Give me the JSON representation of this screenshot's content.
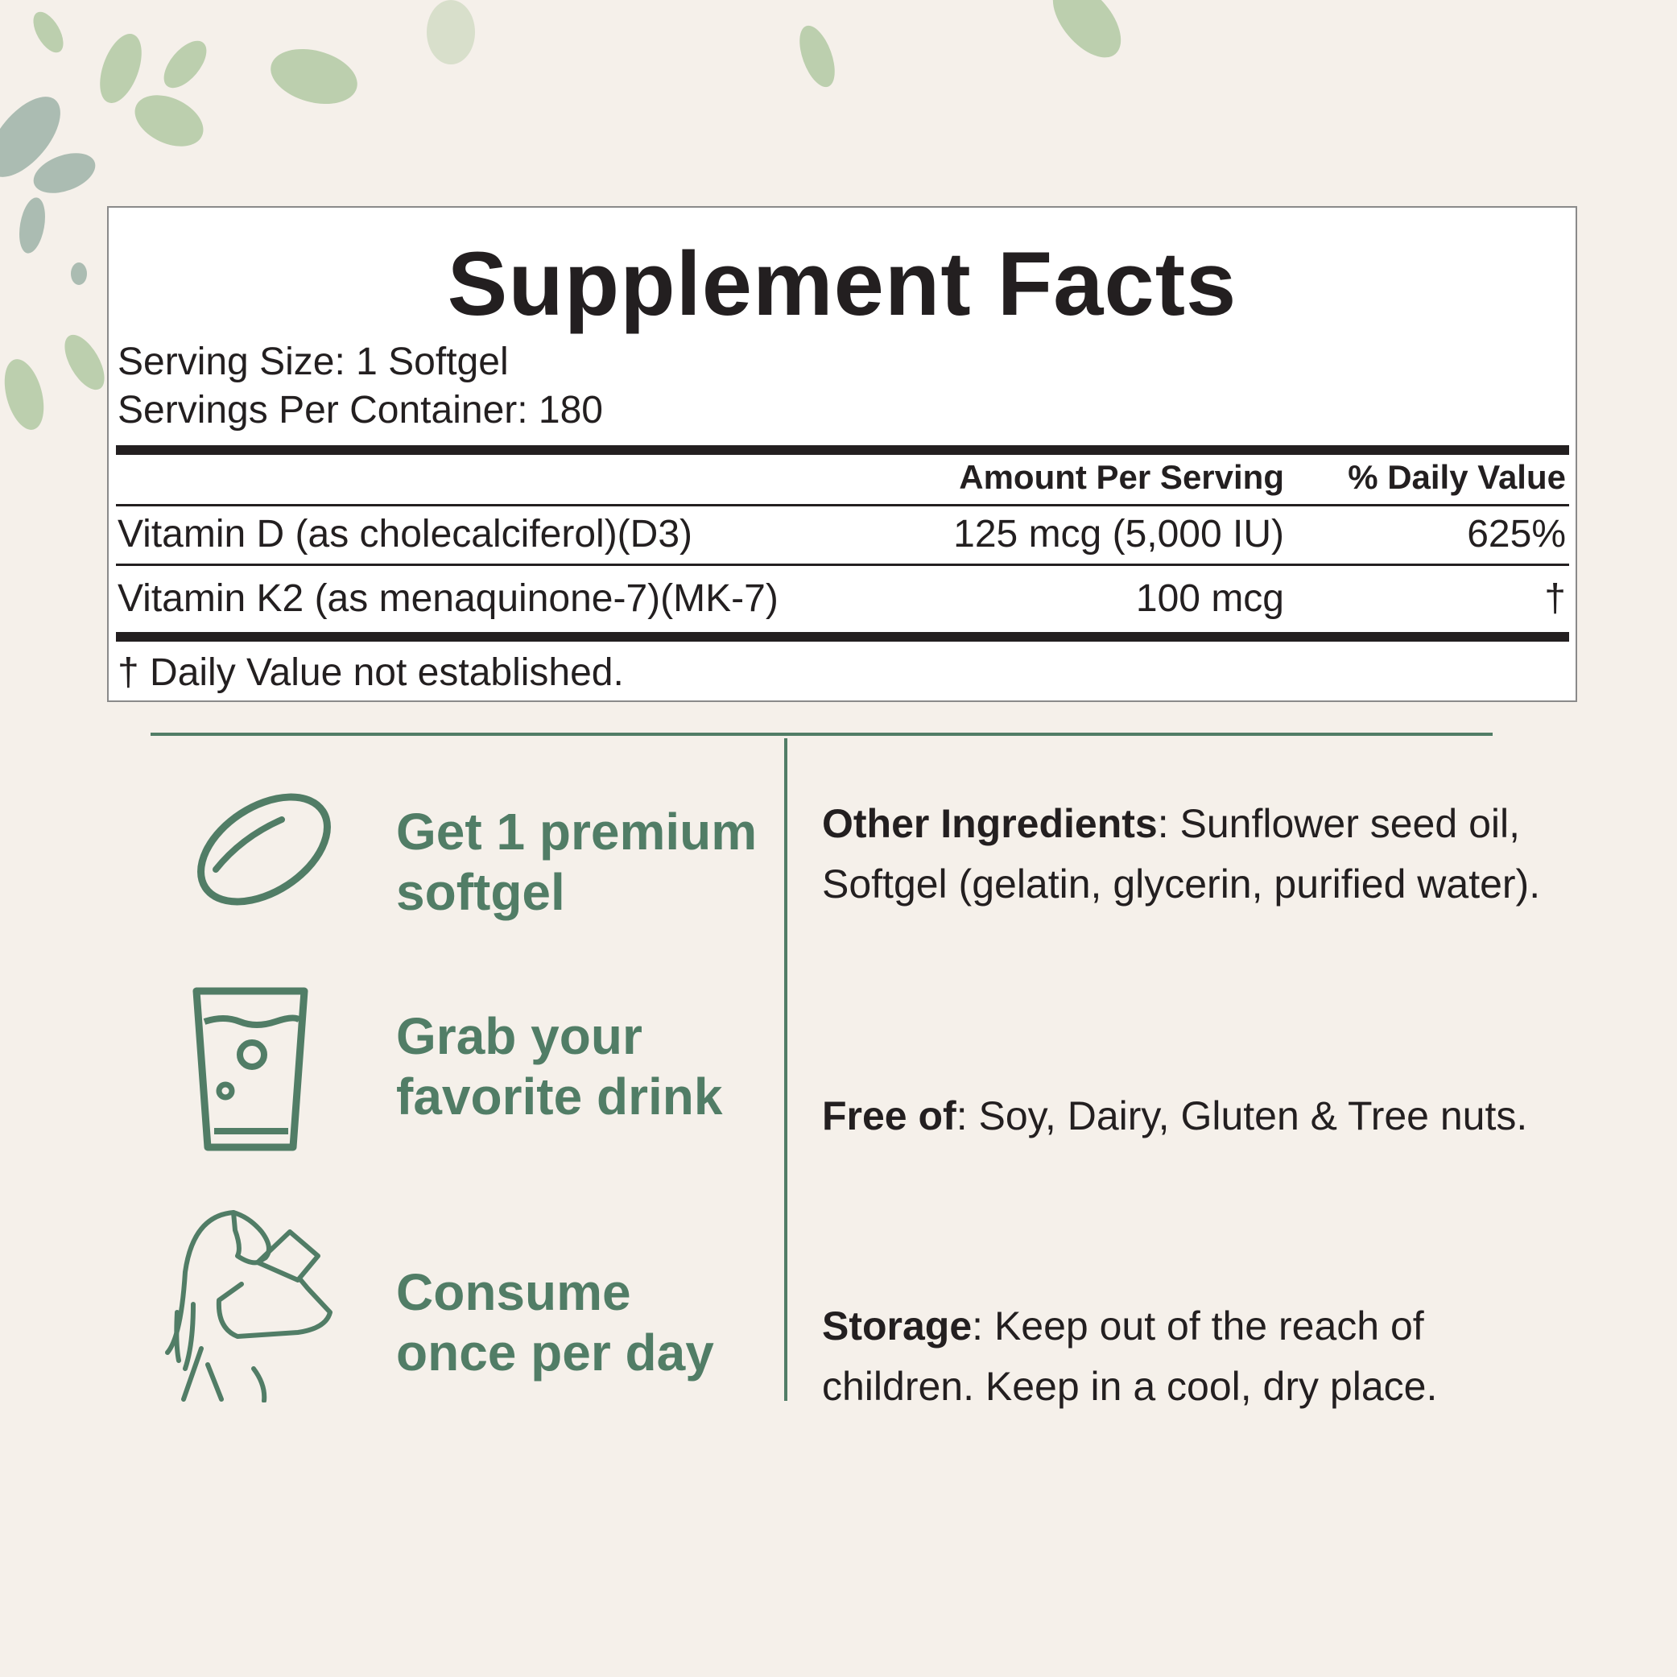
{
  "supplement_facts": {
    "title": "Supplement Facts",
    "serving_size": "Serving Size: 1 Softgel",
    "servings_per_container": "Servings Per Container: 180",
    "columns": {
      "amount": "Amount Per Serving",
      "daily_value": "% Daily Value"
    },
    "rows": [
      {
        "name": "Vitamin D (as cholecalciferol)(D3)",
        "amount": "125 mcg (5,000 IU)",
        "daily_value": "625%"
      },
      {
        "name": "Vitamin K2 (as menaquinone-7)(MK-7)",
        "amount": "100 mcg",
        "daily_value": "†"
      }
    ],
    "footnote": "† Daily Value not established."
  },
  "steps": [
    {
      "icon": "softgel-icon",
      "line1": "Get 1 premium",
      "line2": "softgel"
    },
    {
      "icon": "glass-icon",
      "line1": "Grab your",
      "line2": "favorite drink"
    },
    {
      "icon": "woman-drinking-icon",
      "line1": "Consume",
      "line2": "once per day"
    }
  ],
  "info": {
    "other_ingredients_label": "Other Ingredients",
    "other_ingredients_text": ": Sunflower seed oil, Softgel (gelatin, glycerin, purified water).",
    "free_of_label": "Free of",
    "free_of_text": ": Soy, Dairy, Gluten & Tree nuts.",
    "storage_label": "Storage",
    "storage_text": ": Keep out of the reach of children. Keep in a cool, dry place."
  },
  "colors": {
    "accent_green": "#517d66",
    "background": "#f5f0ea",
    "text": "#231f20"
  }
}
